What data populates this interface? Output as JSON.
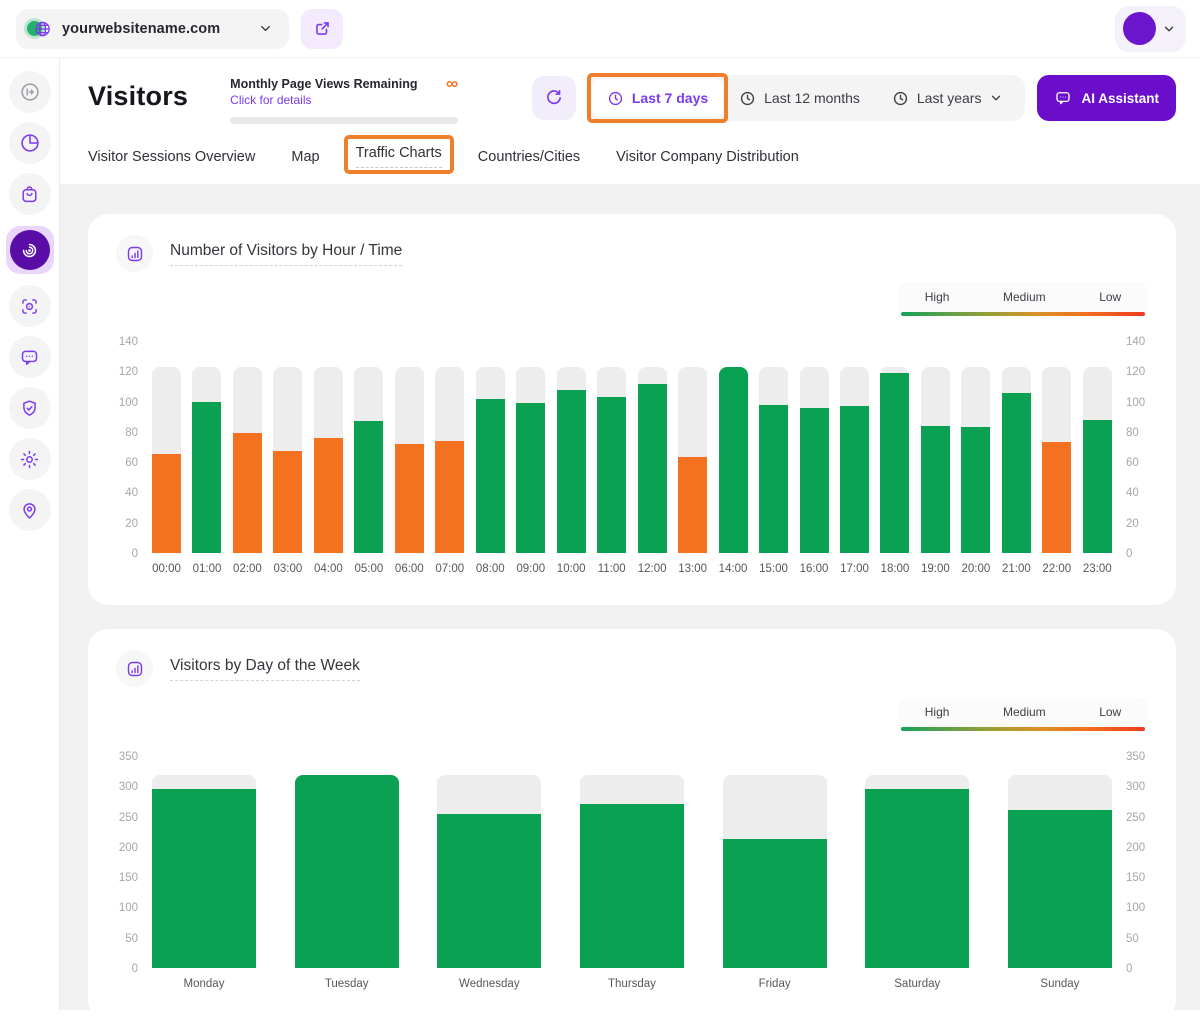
{
  "topbar": {
    "website_name": "yourwebsitename.com"
  },
  "sidebar": {
    "items": [
      {
        "icon": "collapse-sidebar-icon"
      },
      {
        "icon": "pie-chart-icon"
      },
      {
        "icon": "shopping-bag-icon"
      },
      {
        "icon": "visitors-radar-icon",
        "active": true
      },
      {
        "icon": "focus-scan-icon"
      },
      {
        "icon": "chat-bubble-icon"
      },
      {
        "icon": "shield-check-icon"
      },
      {
        "icon": "settings-gear-icon"
      },
      {
        "icon": "location-pin-icon"
      }
    ]
  },
  "header": {
    "title": "Visitors",
    "quota": {
      "label": "Monthly Page Views Remaining",
      "link": "Click for details",
      "value": "∞"
    },
    "time_filters": {
      "last7": "Last 7 days",
      "last12": "Last 12 months",
      "lastYears": "Last years"
    },
    "ai_assistant": "AI Assistant"
  },
  "tabs": {
    "items": [
      {
        "label": "Visitor Sessions Overview"
      },
      {
        "label": "Map"
      },
      {
        "label": "Traffic Charts",
        "active": true
      },
      {
        "label": "Countries/Cities"
      },
      {
        "label": "Visitor Company Distribution"
      }
    ]
  },
  "legend": {
    "high": "High",
    "medium": "Medium",
    "low": "Low"
  },
  "colors": {
    "high_bar": "#0aa152",
    "low_bar": "#f4711f",
    "track": "#ededee",
    "accent_purple": "#7c3aed",
    "deep_purple": "#6a0ecb",
    "annotation_orange": "#ee7f2c",
    "infinity_orange": "#f4711f"
  },
  "chart_data": [
    {
      "type": "bar",
      "title": "Number of Visitors by Hour / Time",
      "categories": [
        "00:00",
        "01:00",
        "02:00",
        "03:00",
        "04:00",
        "05:00",
        "06:00",
        "07:00",
        "08:00",
        "09:00",
        "10:00",
        "11:00",
        "12:00",
        "13:00",
        "14:00",
        "15:00",
        "16:00",
        "17:00",
        "18:00",
        "19:00",
        "20:00",
        "21:00",
        "22:00",
        "23:00"
      ],
      "values": [
        66,
        101,
        80,
        68,
        77,
        88,
        73,
        75,
        103,
        100,
        109,
        104,
        113,
        64,
        124,
        99,
        97,
        98,
        120,
        85,
        84,
        107,
        74,
        89
      ],
      "levels": [
        "low",
        "high",
        "low",
        "low",
        "low",
        "high",
        "low",
        "low",
        "high",
        "high",
        "high",
        "high",
        "high",
        "low",
        "high",
        "high",
        "high",
        "high",
        "high",
        "high",
        "high",
        "high",
        "low",
        "high"
      ],
      "track_value": 124,
      "ylim": [
        0,
        140
      ],
      "yticks": [
        140,
        120,
        100,
        80,
        60,
        40,
        20,
        0
      ],
      "legend": [
        "High",
        "Medium",
        "Low"
      ],
      "legend_position": "top-right",
      "grid": false,
      "xlabel": "",
      "ylabel": ""
    },
    {
      "type": "bar",
      "title": "Visitors by Day of the Week",
      "categories": [
        "Monday",
        "Tuesday",
        "Wednesday",
        "Thursday",
        "Friday",
        "Saturday",
        "Sunday"
      ],
      "values": [
        298,
        322,
        257,
        273,
        215,
        298,
        263
      ],
      "levels": [
        "high",
        "high",
        "high",
        "high",
        "high",
        "high",
        "high"
      ],
      "track_value": 322,
      "ylim": [
        0,
        350
      ],
      "yticks": [
        350,
        300,
        250,
        200,
        150,
        100,
        50,
        0
      ],
      "legend": [
        "High",
        "Medium",
        "Low"
      ],
      "legend_position": "top-right",
      "grid": false,
      "xlabel": "",
      "ylabel": ""
    }
  ]
}
